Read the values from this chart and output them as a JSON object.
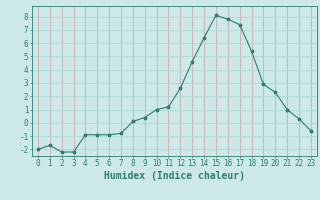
{
  "x": [
    0,
    1,
    2,
    3,
    4,
    5,
    6,
    7,
    8,
    9,
    10,
    11,
    12,
    13,
    14,
    15,
    16,
    17,
    18,
    19,
    20,
    21,
    22,
    23
  ],
  "y": [
    -2.0,
    -1.7,
    -2.2,
    -2.2,
    -0.9,
    -0.9,
    -0.9,
    -0.8,
    0.1,
    0.4,
    1.0,
    1.2,
    2.6,
    4.6,
    6.4,
    8.1,
    7.8,
    7.4,
    5.4,
    2.9,
    2.3,
    1.0,
    0.3,
    -0.6
  ],
  "line_color": "#2e7d6e",
  "marker": "*",
  "marker_size": 2.5,
  "bg_color": "#cce9e7",
  "xlabel": "Humidex (Indice chaleur)",
  "xlim": [
    -0.5,
    23.5
  ],
  "ylim": [
    -2.5,
    8.8
  ],
  "yticks": [
    -2,
    -1,
    0,
    1,
    2,
    3,
    4,
    5,
    6,
    7,
    8
  ],
  "xticks": [
    0,
    1,
    2,
    3,
    4,
    5,
    6,
    7,
    8,
    9,
    10,
    11,
    12,
    13,
    14,
    15,
    16,
    17,
    18,
    19,
    20,
    21,
    22,
    23
  ],
  "tick_fontsize": 5.5,
  "xlabel_fontsize": 7.0,
  "tick_color": "#2e7d6e",
  "spine_color": "#2e7d6e",
  "grid_y_color": "#aed4d0",
  "grid_x_color": "#c8a0a0",
  "linewidth": 0.8
}
